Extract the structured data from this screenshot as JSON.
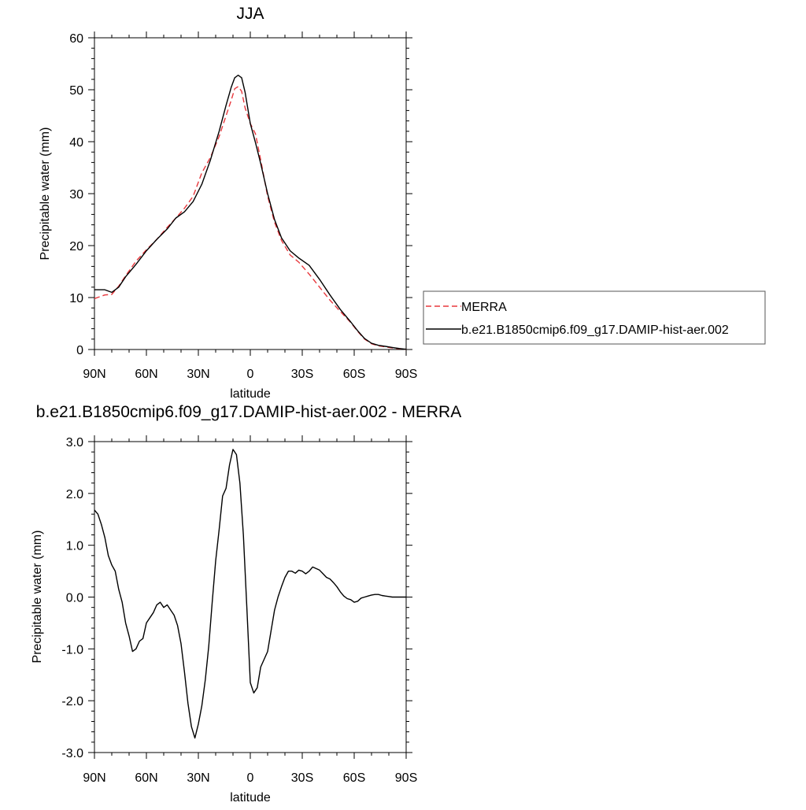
{
  "chart_data": [
    {
      "type": "line",
      "title": "JJA",
      "xlabel": "latitude",
      "ylabel": "Precipitable water (mm)",
      "xlim": [
        90,
        -90
      ],
      "ylim": [
        0,
        60
      ],
      "yticks": [
        0,
        10,
        20,
        30,
        40,
        50,
        60
      ],
      "ytick_labels": [
        "0",
        "10",
        "20",
        "30",
        "40",
        "50",
        "60"
      ],
      "xticks": [
        90,
        60,
        30,
        0,
        -30,
        -60,
        -90
      ],
      "xtick_labels": [
        "90N",
        "60N",
        "30N",
        "0",
        "30S",
        "60S",
        "90S"
      ],
      "legend_position": "right",
      "series": [
        {
          "name": "MERRA",
          "color": "#e8383d",
          "dash": "dashed",
          "x": [
            90,
            84,
            80,
            76,
            72,
            66,
            60,
            54,
            48,
            43,
            38,
            33,
            28,
            23,
            18,
            14,
            11,
            9,
            7,
            5,
            3,
            0,
            -3,
            -6,
            -10,
            -14,
            -18,
            -23,
            -28,
            -34,
            -40,
            -46,
            -52,
            -58,
            -62,
            -66,
            -70,
            -74,
            -78,
            -82,
            -86,
            -90
          ],
          "values": [
            9.8,
            10.5,
            10.6,
            12.2,
            14.2,
            17.0,
            19.2,
            21.2,
            23.5,
            25.3,
            27.2,
            29.5,
            34.0,
            37.0,
            41.0,
            45.0,
            48.0,
            50.2,
            50.6,
            49.7,
            46.5,
            43.5,
            41.5,
            36.5,
            29.5,
            24.5,
            21.0,
            18.2,
            16.8,
            14.5,
            12.0,
            9.5,
            7.3,
            5.2,
            3.5,
            2.0,
            1.1,
            0.7,
            0.5,
            0.3,
            0.15,
            0.05
          ]
        },
        {
          "name": "b.e21.B1850cmip6.f09_g17.DAMIP-hist-aer.002",
          "color": "#000000",
          "dash": "solid",
          "x": [
            90,
            84,
            80,
            76,
            72,
            66,
            60,
            54,
            48,
            43,
            38,
            33,
            28,
            23,
            18,
            14,
            11,
            9,
            7,
            5,
            3,
            0,
            -3,
            -6,
            -10,
            -14,
            -18,
            -23,
            -28,
            -34,
            -40,
            -46,
            -52,
            -58,
            -62,
            -66,
            -70,
            -74,
            -78,
            -82,
            -86,
            -90
          ],
          "values": [
            11.5,
            11.5,
            11.0,
            12.0,
            14.0,
            16.4,
            19.0,
            21.2,
            23.2,
            25.3,
            26.5,
            28.5,
            31.8,
            36.5,
            42.0,
            47.0,
            50.5,
            52.3,
            52.8,
            52.3,
            49.5,
            43.5,
            39.8,
            35.8,
            30.0,
            25.0,
            21.5,
            19.0,
            17.6,
            16.2,
            13.5,
            10.5,
            7.7,
            5.3,
            3.6,
            2.1,
            1.2,
            0.8,
            0.6,
            0.4,
            0.2,
            0.05
          ]
        }
      ]
    },
    {
      "type": "line",
      "title": "b.e21.B1850cmip6.f09_g17.DAMIP-hist-aer.002 - MERRA",
      "xlabel": "latitude",
      "ylabel": "Precipitable water (mm)",
      "xlim": [
        90,
        -90
      ],
      "ylim": [
        -3.0,
        3.0
      ],
      "yticks": [
        -3,
        -2,
        -1,
        0,
        1,
        2,
        3
      ],
      "ytick_labels": [
        "-3.0",
        "-2.0",
        "-1.0",
        "0.0",
        "1.0",
        "2.0",
        "3.0"
      ],
      "xticks": [
        90,
        60,
        30,
        0,
        -30,
        -60,
        -90
      ],
      "xtick_labels": [
        "90N",
        "60N",
        "30N",
        "0",
        "30S",
        "60S",
        "90S"
      ],
      "series": [
        {
          "color": "#000000",
          "dash": "solid",
          "x": [
            90,
            88,
            86,
            84,
            82,
            80,
            78,
            76,
            74,
            72,
            70,
            68,
            66,
            64,
            62,
            60,
            58,
            56,
            54,
            52,
            50,
            48,
            46,
            44,
            42,
            40,
            38,
            36,
            34,
            32,
            30,
            28,
            26,
            24,
            22,
            20,
            18,
            16,
            14,
            12,
            10,
            8,
            6,
            4,
            2,
            0,
            -2,
            -4,
            -6,
            -8,
            -10,
            -12,
            -14,
            -16,
            -18,
            -20,
            -22,
            -24,
            -26,
            -28,
            -30,
            -32,
            -34,
            -36,
            -38,
            -40,
            -42,
            -44,
            -46,
            -48,
            -50,
            -52,
            -54,
            -56,
            -58,
            -60,
            -62,
            -64,
            -66,
            -68,
            -70,
            -72,
            -74,
            -76,
            -78,
            -80,
            -82,
            -84,
            -86,
            -88,
            -90
          ],
          "values": [
            1.68,
            1.6,
            1.4,
            1.15,
            0.8,
            0.62,
            0.5,
            0.15,
            -0.1,
            -0.5,
            -0.75,
            -1.05,
            -1.0,
            -0.85,
            -0.8,
            -0.5,
            -0.4,
            -0.3,
            -0.15,
            -0.1,
            -0.2,
            -0.15,
            -0.25,
            -0.35,
            -0.55,
            -0.9,
            -1.45,
            -2.05,
            -2.5,
            -2.72,
            -2.45,
            -2.1,
            -1.6,
            -0.95,
            -0.1,
            0.7,
            1.3,
            1.95,
            2.1,
            2.55,
            2.85,
            2.75,
            2.2,
            1.2,
            -0.2,
            -1.65,
            -1.85,
            -1.75,
            -1.35,
            -1.2,
            -1.05,
            -0.65,
            -0.25,
            0.0,
            0.2,
            0.38,
            0.5,
            0.5,
            0.46,
            0.52,
            0.5,
            0.45,
            0.5,
            0.58,
            0.55,
            0.52,
            0.45,
            0.38,
            0.35,
            0.28,
            0.2,
            0.1,
            0.02,
            -0.03,
            -0.05,
            -0.1,
            -0.08,
            -0.02,
            0.0,
            0.02,
            0.04,
            0.05,
            0.05,
            0.03,
            0.02,
            0.01,
            0.0,
            0.0,
            0.0,
            0.0,
            0.0
          ]
        }
      ]
    }
  ]
}
